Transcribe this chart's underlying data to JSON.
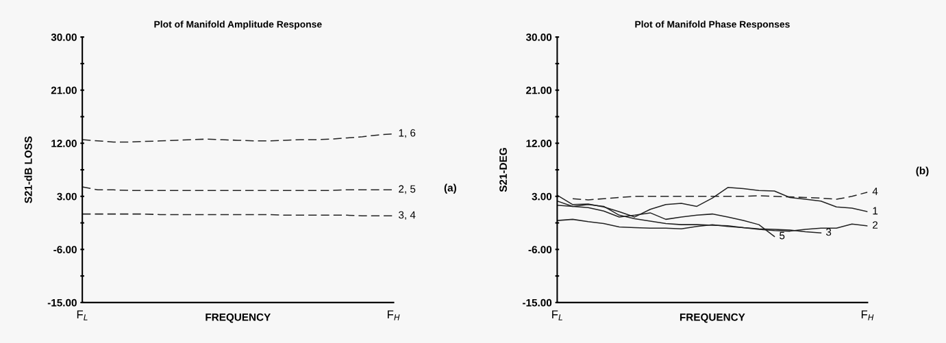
{
  "chart_data": [
    {
      "type": "line",
      "title": "Plot of Manifold Amplitude Response",
      "xlabel": "FREQUENCY",
      "ylabel": "S21-dB LOSS",
      "categories": [
        "F$_{L}$",
        null,
        null,
        null,
        null,
        null,
        null,
        null,
        null,
        null,
        null,
        null,
        null,
        null,
        null,
        null,
        null,
        null,
        null,
        null,
        "F$_{H}$"
      ],
      "ylim": [
        -15,
        30
      ],
      "yticks": [
        {
          "value": -15,
          "label": "-15.00"
        },
        {
          "value": -10.5,
          "label": null
        },
        {
          "value": -6,
          "label": "-6.00"
        },
        {
          "value": -1.5,
          "label": null
        },
        {
          "value": 3,
          "label": "3.00"
        },
        {
          "value": 7.5,
          "label": null
        },
        {
          "value": 12,
          "label": "12.00"
        },
        {
          "value": 16.5,
          "label": null
        },
        {
          "value": 21,
          "label": "21.00"
        },
        {
          "value": 25.5,
          "label": null
        },
        {
          "value": 30,
          "label": "30.00"
        }
      ],
      "grid": false,
      "legend": false,
      "line_style": "dashed",
      "annotations": [
        "(a)"
      ],
      "series": [
        {
          "name": "1, 6",
          "color": "#222222",
          "values": [
            12.6,
            12.4,
            12.2,
            12.2,
            12.3,
            12.4,
            12.5,
            12.6,
            12.7,
            12.6,
            12.5,
            12.4,
            12.4,
            12.5,
            12.6,
            12.6,
            12.7,
            12.9,
            13.1,
            13.4,
            13.6
          ]
        },
        {
          "name": "2, 5",
          "color": "#222222",
          "values": [
            4.6,
            4.1,
            4.1,
            4.0,
            4.0,
            4.0,
            4.0,
            4.0,
            4.0,
            4.0,
            4.0,
            4.0,
            4.0,
            4.0,
            4.0,
            4.0,
            4.0,
            4.1,
            4.1,
            4.1,
            4.1
          ]
        },
        {
          "name": "3, 4",
          "color": "#222222",
          "values": [
            0.0,
            0.0,
            0.0,
            0.0,
            0.0,
            -0.1,
            -0.1,
            -0.1,
            -0.1,
            -0.1,
            -0.1,
            -0.1,
            -0.1,
            -0.2,
            -0.2,
            -0.2,
            -0.2,
            -0.2,
            -0.3,
            -0.3,
            -0.3
          ]
        }
      ]
    },
    {
      "type": "line",
      "title": "Plot of Manifold Phase Responses",
      "xlabel": "FREQUENCY",
      "ylabel": "S21-DEG",
      "categories": [
        "F$_{L}$",
        null,
        null,
        null,
        null,
        null,
        null,
        null,
        null,
        null,
        null,
        null,
        null,
        null,
        null,
        null,
        null,
        null,
        null,
        null,
        "F$_{H}$"
      ],
      "ylim": [
        -15,
        30
      ],
      "yticks": [
        {
          "value": -15,
          "label": "-15.00"
        },
        {
          "value": -10.5,
          "label": null
        },
        {
          "value": -6,
          "label": "-6.00"
        },
        {
          "value": -1.5,
          "label": null
        },
        {
          "value": 3,
          "label": "3.00"
        },
        {
          "value": 7.5,
          "label": null
        },
        {
          "value": 12,
          "label": "12.00"
        },
        {
          "value": 16.5,
          "label": null
        },
        {
          "value": 21,
          "label": "21.00"
        },
        {
          "value": 25.5,
          "label": null
        },
        {
          "value": 30,
          "label": "30.00"
        }
      ],
      "grid": false,
      "legend": false,
      "line_style": "solid",
      "annotations": [
        "(b)"
      ],
      "series": [
        {
          "name": "1",
          "color": "#222222",
          "values": [
            3.2,
            1.6,
            1.7,
            1.2,
            0.4,
            -0.5,
            0.8,
            1.6,
            1.8,
            1.3,
            2.7,
            4.5,
            4.3,
            4.0,
            3.9,
            2.8,
            2.5,
            2.2,
            1.2,
            1.0,
            0.4
          ]
        },
        {
          "name": "2",
          "color": "#222222",
          "values": [
            -1.1,
            -0.9,
            -1.3,
            -1.6,
            -2.2,
            -2.3,
            -2.4,
            -2.4,
            -2.5,
            -2.1,
            -1.8,
            -2.1,
            -2.3,
            -2.6,
            -2.8,
            -2.9,
            -2.6,
            -2.4,
            -2.4,
            -1.7,
            -2.0
          ]
        },
        {
          "name": "3",
          "color": "#222222",
          "values": [
            1.5,
            1.3,
            1.6,
            1.3,
            -0.2,
            -0.8,
            -1.2,
            -1.6,
            -1.8,
            -1.8,
            -1.9,
            -2.0,
            -2.3,
            -2.5,
            -2.6,
            -2.7,
            -3.0,
            -3.2,
            null,
            null,
            null
          ]
        },
        {
          "name": "4",
          "color": "#222222",
          "line_style": "dashed",
          "values": [
            null,
            2.6,
            2.4,
            2.6,
            2.8,
            3.0,
            3.0,
            3.0,
            3.0,
            3.0,
            3.0,
            3.0,
            3.0,
            3.1,
            3.0,
            2.9,
            2.8,
            2.7,
            2.5,
            3.0,
            3.7
          ]
        },
        {
          "name": "5",
          "color": "#222222",
          "values": [
            2.2,
            1.3,
            1.1,
            0.5,
            -0.5,
            -0.2,
            0.2,
            -0.9,
            -0.5,
            -0.2,
            0.0,
            -0.5,
            -1.1,
            -1.8,
            -3.8,
            null,
            null,
            null,
            null,
            null,
            null
          ]
        }
      ]
    }
  ]
}
